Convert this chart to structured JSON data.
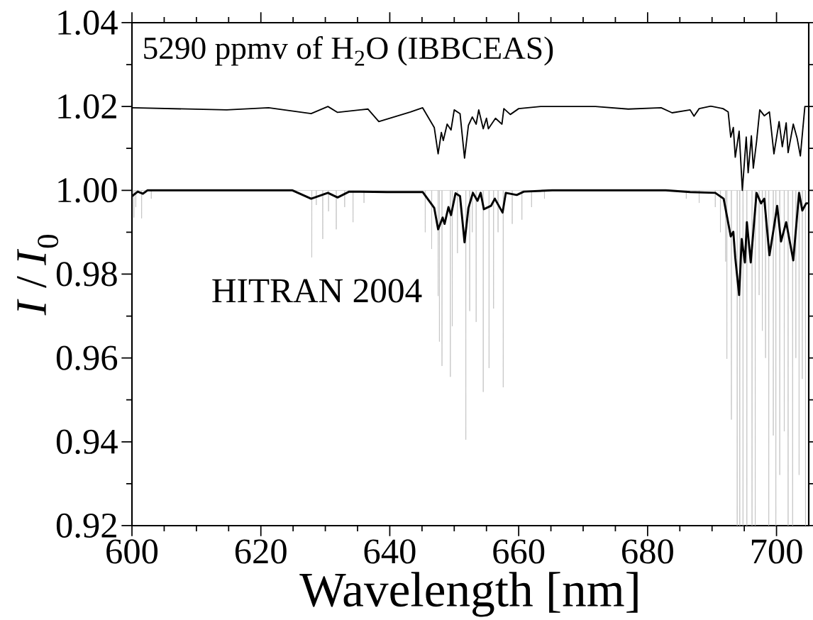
{
  "chart_data": {
    "type": "line",
    "xlabel": "Wavelength [nm]",
    "ylabel": "*I* / *I*$_{0}$",
    "xlim": [
      600,
      705
    ],
    "ylim": [
      0.92,
      1.04
    ],
    "xticks": [
      600,
      620,
      640,
      660,
      680,
      700
    ],
    "yticks": [
      0.92,
      0.94,
      0.96,
      0.98,
      {
        "value": 1,
        "label": "1.00"
      },
      1.02,
      1.04
    ],
    "annotations": [
      "5290 ppmv of H$_{2}$O  (IBBCEAS)",
      "HITRAN 2004"
    ],
    "series": [
      {
        "color": "#c0c0c0",
        "x": [
          600.28,
          600.3,
          600.32,
          600.58,
          600.6,
          600.62,
          601.48,
          601.5,
          601.52,
          602.98,
          603.0,
          603.02,
          627.88,
          627.9,
          627.92,
          628.58,
          628.6,
          628.62,
          629.58,
          629.6,
          629.62,
          630.48,
          630.5,
          630.52,
          631.68,
          631.7,
          631.72,
          632.98,
          633.0,
          633.02,
          634.28,
          634.3,
          634.32,
          635.98,
          636.0,
          636.02,
          645.48,
          645.5,
          645.52,
          646.48,
          646.5,
          646.52,
          647.48,
          647.5,
          647.52,
          647.68,
          647.7,
          647.72,
          648.08,
          648.1,
          648.12,
          649.38,
          649.4,
          649.42,
          649.68,
          649.7,
          649.72,
          650.48,
          650.5,
          650.52,
          651.78,
          651.8,
          651.82,
          652.38,
          652.4,
          652.42,
          652.78,
          652.8,
          652.82,
          653.38,
          653.4,
          653.42,
          654.48,
          654.5,
          654.52,
          655.38,
          655.4,
          655.42,
          656.08,
          656.1,
          656.12,
          656.78,
          656.8,
          656.82,
          657.58,
          657.6,
          657.62,
          658.98,
          659.0,
          659.02,
          660.48,
          660.5,
          660.52,
          661.98,
          662.0,
          662.02,
          663.98,
          664.0,
          664.02,
          685.98,
          686.0,
          686.02,
          687.98,
          688.0,
          688.02,
          690.48,
          690.5,
          690.52,
          691.28,
          691.3,
          691.32,
          692.08,
          692.1,
          692.12,
          692.28,
          692.3,
          692.32,
          692.98,
          693.0,
          693.02,
          693.88,
          693.9,
          693.92,
          694.28,
          694.3,
          694.32,
          694.78,
          694.8,
          694.82,
          695.38,
          695.4,
          695.42,
          696.18,
          696.2,
          696.22,
          696.68,
          696.7,
          696.72,
          697.28,
          697.3,
          697.32,
          697.78,
          697.8,
          697.82,
          698.28,
          698.3,
          698.32,
          698.78,
          698.8,
          698.82,
          699.48,
          699.5,
          699.52,
          699.88,
          699.9,
          699.92,
          700.48,
          700.5,
          700.52,
          701.18,
          701.2,
          701.22,
          701.78,
          701.8,
          701.82,
          702.48,
          702.5,
          702.52,
          702.98,
          703.0,
          703.02,
          703.48,
          703.5,
          703.52,
          703.98,
          704.0,
          704.02,
          704.48,
          704.5,
          704.52
        ],
        "values": [
          1,
          0.9935,
          1,
          1,
          0.996,
          1,
          1,
          0.9933,
          1,
          1,
          0.998,
          1,
          1,
          0.984,
          1,
          1,
          0.9965,
          1,
          1,
          0.9884,
          1,
          1,
          0.995,
          1,
          1,
          0.9907,
          1,
          1,
          0.996,
          1,
          1,
          0.9924,
          1,
          1,
          0.997,
          1,
          1,
          0.99,
          1,
          1,
          0.986,
          1,
          1,
          0.9748,
          1,
          1,
          0.9639,
          1,
          1,
          0.9581,
          1,
          1,
          0.9555,
          1,
          1,
          0.9676,
          1,
          1,
          0.985,
          1,
          1,
          0.9405,
          1,
          1,
          0.9712,
          1,
          1,
          0.99,
          1,
          1,
          0.9686,
          1,
          1,
          0.9519,
          1,
          1,
          0.9576,
          1,
          1,
          0.9718,
          1,
          1,
          0.99,
          1,
          1,
          0.953,
          1,
          1,
          0.992,
          1,
          1,
          0.993,
          1,
          1,
          0.996,
          1,
          1,
          0.998,
          1,
          1,
          0.998,
          1,
          1,
          0.997,
          1,
          1,
          0.996,
          1,
          1,
          0.99,
          1,
          1,
          0.983,
          1,
          1,
          0.9598,
          1,
          1,
          0.9453,
          1,
          1,
          0.92,
          1,
          1,
          0.92,
          1,
          1,
          0.92,
          1,
          1,
          0.92,
          1,
          1,
          0.92,
          1,
          1,
          0.92,
          1,
          1,
          0.975,
          1,
          1,
          0.9665,
          1,
          1,
          0.96,
          1,
          1,
          0.92,
          1,
          1,
          0.9415,
          1,
          1,
          0.92,
          1,
          1,
          0.9321,
          1,
          1,
          0.9425,
          1,
          1,
          0.92,
          1,
          1,
          0.92,
          1,
          1,
          0.96,
          1,
          1,
          0.9321,
          1,
          1,
          0.955,
          1,
          1,
          0.92,
          1
        ]
      },
      {
        "color": "#000000",
        "x": [
          600.0,
          600.9,
          601.7,
          602.4,
          624.9,
          627.8,
          630.4,
          631.9,
          633.7,
          639.6,
          645.1,
          646.9,
          647.5,
          648.2,
          648.5,
          649.1,
          649.5,
          650.2,
          650.9,
          651.6,
          652.2,
          652.9,
          653.6,
          654.1,
          654.6,
          655.7,
          656.3,
          657.5,
          658.0,
          659.7,
          660.8,
          665.2,
          682.8,
          686.6,
          690.5,
          691.8,
          692.9,
          693.3,
          693.6,
          694.2,
          694.6,
          695.1,
          695.4,
          696.0,
          696.4,
          696.9,
          697.6,
          698.1,
          698.9,
          699.6,
          700.1,
          700.7,
          701.5,
          702.6,
          703.5,
          704.0,
          704.6,
          705.0
        ],
        "values": [
          0.9986,
          0.9997,
          0.9992,
          1.0,
          1.0,
          0.998,
          0.9994,
          0.9983,
          0.9997,
          0.9996,
          0.9996,
          0.9958,
          0.9907,
          0.9935,
          0.992,
          0.996,
          0.9941,
          0.9993,
          0.9986,
          0.9876,
          0.9958,
          0.9994,
          0.9975,
          0.9994,
          0.9955,
          0.9963,
          0.998,
          0.9947,
          0.9994,
          0.9989,
          0.9997,
          1.0,
          1.0,
          0.9996,
          0.9994,
          0.998,
          0.989,
          0.9901,
          0.9839,
          0.975,
          0.9884,
          0.9828,
          0.9924,
          0.9828,
          0.9901,
          0.9994,
          0.9969,
          0.998,
          0.9845,
          0.9912,
          0.9963,
          0.9878,
          0.9924,
          0.9833,
          0.9994,
          0.9952,
          0.9969,
          0.9969
        ]
      },
      {
        "color": "#000000",
        "x": [
          600.0,
          614.7,
          621.2,
          627.8,
          630.4,
          631.9,
          636.6,
          638.3,
          643.2,
          645.1,
          646.9,
          647.5,
          648.0,
          648.3,
          648.9,
          649.5,
          650.0,
          650.9,
          651.6,
          652.2,
          652.8,
          653.4,
          653.8,
          654.5,
          655.0,
          655.3,
          656.4,
          657.4,
          657.7,
          658.7,
          660.0,
          663.4,
          671.9,
          677.0,
          682.1,
          683.8,
          686.6,
          687.2,
          688.0,
          689.8,
          691.7,
          692.5,
          692.9,
          693.3,
          693.6,
          694.2,
          694.7,
          695.3,
          695.6,
          696.1,
          696.4,
          696.9,
          697.4,
          698.1,
          698.9,
          699.6,
          700.4,
          700.9,
          701.5,
          701.8,
          702.6,
          703.2,
          703.7,
          704.4,
          705.0
        ],
        "values": [
          1.0197,
          1.0192,
          1.0197,
          1.0183,
          1.02,
          1.0186,
          1.0194,
          1.0164,
          1.0187,
          1.0197,
          1.015,
          1.0087,
          1.0138,
          1.0119,
          1.0158,
          1.0144,
          1.0192,
          1.0183,
          1.0077,
          1.0155,
          1.0175,
          1.0158,
          1.0192,
          1.0147,
          1.0172,
          1.0147,
          1.0172,
          1.0158,
          1.0195,
          1.0181,
          1.0195,
          1.02,
          1.02,
          1.0194,
          1.0197,
          1.0185,
          1.0192,
          1.0177,
          1.0195,
          1.0201,
          1.0195,
          1.0187,
          1.0127,
          1.015,
          1.0079,
          1.0141,
          1.0,
          1.0127,
          1.0042,
          1.013,
          1.0053,
          1.0116,
          1.0192,
          1.0178,
          1.0187,
          1.0087,
          1.0164,
          1.0104,
          1.0161,
          1.009,
          1.0158,
          1.0124,
          1.0082,
          1.02,
          1.02
        ]
      }
    ]
  }
}
